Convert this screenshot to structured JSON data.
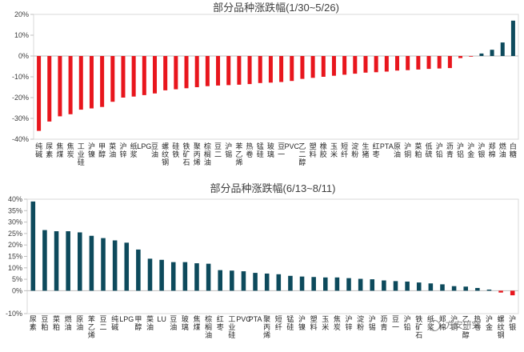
{
  "chart_data": [
    {
      "type": "bar",
      "title": "部分品种涨跌幅(1/30~5/26)",
      "xlabel": "",
      "ylabel": "",
      "ylim": [
        -40,
        20
      ],
      "yticks": [
        -40,
        -30,
        -20,
        -10,
        0,
        10,
        20
      ],
      "tick_format": "percent",
      "grid": false,
      "positive_color": "#0d4a5c",
      "negative_color": "#e8161d",
      "categories": [
        "纯碱",
        "尿素",
        "焦煤",
        "焦炭",
        "工业硅",
        "沪镍",
        "甲醇",
        "菜油",
        "沪锌",
        "纸浆",
        "LPG",
        "豆油",
        "螺纹钢",
        "硅铁",
        "铁矿石",
        "聚丙烯",
        "棕榈油",
        "豆二",
        "沪锡",
        "苯乙烯",
        "热卷",
        "锰硅",
        "玻璃",
        "豆一",
        "PVC",
        "乙二醇",
        "塑料",
        "橡胶",
        "玉米",
        "短纤",
        "淀粉",
        "生猪",
        "红枣",
        "PTA",
        "原油",
        "沪铜",
        "菜粕",
        "低硫",
        "沪铅",
        "沥青",
        "沪铝",
        "沪金",
        "沪银",
        "郑棉",
        "燃油",
        "白糖"
      ],
      "values": [
        -36.0,
        -31.5,
        -29.0,
        -28.0,
        -25.8,
        -25.2,
        -24.5,
        -22.0,
        -20.0,
        -19.5,
        -18.8,
        -18.0,
        -16.5,
        -16.0,
        -15.5,
        -15.0,
        -14.5,
        -14.2,
        -14.0,
        -13.8,
        -13.5,
        -13.0,
        -12.8,
        -12.5,
        -12.0,
        -11.0,
        -10.5,
        -10.0,
        -9.5,
        -9.0,
        -8.5,
        -8.0,
        -7.8,
        -7.5,
        -7.0,
        -6.8,
        -6.5,
        -6.2,
        -6.0,
        -5.8,
        -1.0,
        -0.3,
        1.2,
        3.0,
        6.5,
        17.0
      ]
    },
    {
      "type": "bar",
      "title": "部分品种涨跌幅(6/13~8/11)",
      "xlabel": "",
      "ylabel": "",
      "ylim": [
        -10,
        40
      ],
      "yticks": [
        -10,
        0,
        5,
        10,
        15,
        20,
        25,
        30,
        35,
        40
      ],
      "tick_format": "percent",
      "grid": false,
      "positive_color": "#0d4a5c",
      "negative_color": "#e8161d",
      "categories": [
        "尿素",
        "豆粕",
        "菜粕",
        "燃油",
        "原油",
        "苯乙烯",
        "豆二",
        "纯碱",
        "LPG",
        "甲醇",
        "菜油",
        "LU",
        "豆油",
        "玻璃",
        "焦煤",
        "棕榈油",
        "红枣",
        "工业硅",
        "PVC",
        "PTA",
        "聚丙烯",
        "短纤",
        "锰硅",
        "沪镍",
        "塑料",
        "玉米",
        "焦炭",
        "沪锌",
        "淀粉",
        "沪锡",
        "沥青",
        "豆一",
        "沪铅",
        "铁矿石",
        "纸浆",
        "郑棉",
        "沪铜",
        "乙二醇",
        "热卷",
        "沪金",
        "螺纹钢",
        "沪银"
      ],
      "values": [
        39.0,
        26.5,
        26.0,
        26.0,
        25.5,
        24.0,
        23.0,
        22.0,
        21.0,
        18.0,
        14.0,
        13.5,
        12.5,
        12.5,
        12.0,
        11.8,
        9.0,
        8.8,
        8.5,
        7.8,
        7.5,
        7.2,
        6.5,
        6.2,
        6.0,
        5.8,
        5.8,
        5.5,
        5.2,
        5.0,
        4.5,
        4.2,
        4.0,
        3.6,
        3.2,
        2.8,
        2.0,
        1.8,
        1.2,
        0.5,
        -0.8,
        -2.0
      ]
    }
  ],
  "watermark": "方安研究"
}
